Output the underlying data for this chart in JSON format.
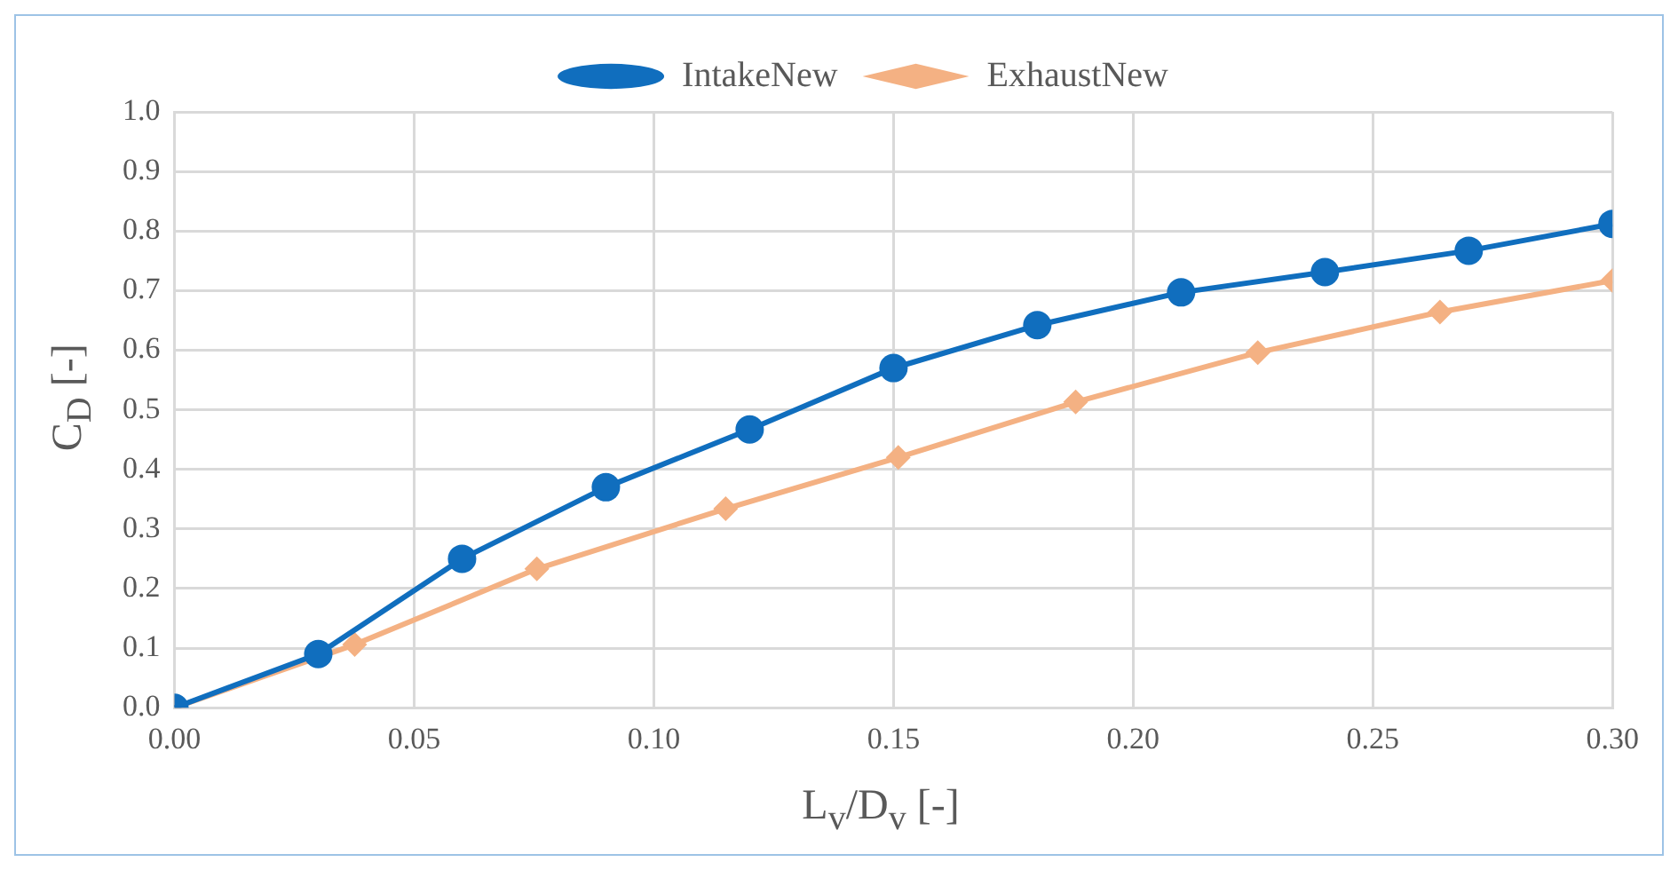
{
  "chart_data": {
    "type": "line",
    "xlabel": "L$_{v}$/D$_{v}$ [-]",
    "ylabel": "C$_{D}$ [-]",
    "series": [
      {
        "name": "IntakeNew",
        "color": "#106ebe",
        "marker": "circle",
        "x": [
          0,
          0.03,
          0.06,
          0.09,
          0.12,
          0.15,
          0.18,
          0.21,
          0.24,
          0.27,
          0.3
        ],
        "values": [
          0,
          0.09,
          0.25,
          0.37,
          0.467,
          0.57,
          0.642,
          0.697,
          0.731,
          0.767,
          0.812
        ]
      },
      {
        "name": "ExhaustNew",
        "color": "#f4b183",
        "marker": "diamond",
        "x": [
          0,
          0.0376,
          0.0756,
          0.115,
          0.151,
          0.188,
          0.226,
          0.264,
          0.3
        ],
        "values": [
          0,
          0.106,
          0.233,
          0.334,
          0.42,
          0.513,
          0.596,
          0.664,
          0.717
        ]
      }
    ],
    "xlim": [
      0,
      0.3
    ],
    "xticks": [
      {
        "value": 0,
        "label": "0.00"
      },
      {
        "value": 0.05,
        "label": "0.05"
      },
      {
        "value": 0.1,
        "label": "0.10"
      },
      {
        "value": 0.15,
        "label": "0.15"
      },
      {
        "value": 0.2,
        "label": "0.20"
      },
      {
        "value": 0.25,
        "label": "0.25"
      },
      {
        "value": 0.3,
        "label": "0.30"
      }
    ],
    "ylim": [
      0,
      1
    ],
    "yticks": [
      {
        "value": 0,
        "label": "0.0"
      },
      0.1,
      0.2,
      0.3,
      0.4,
      0.5,
      0.6,
      0.7,
      0.8,
      0.9,
      {
        "value": 1,
        "label": "1.0"
      }
    ],
    "grid": true,
    "legend": "top",
    "line_style": "solid"
  }
}
